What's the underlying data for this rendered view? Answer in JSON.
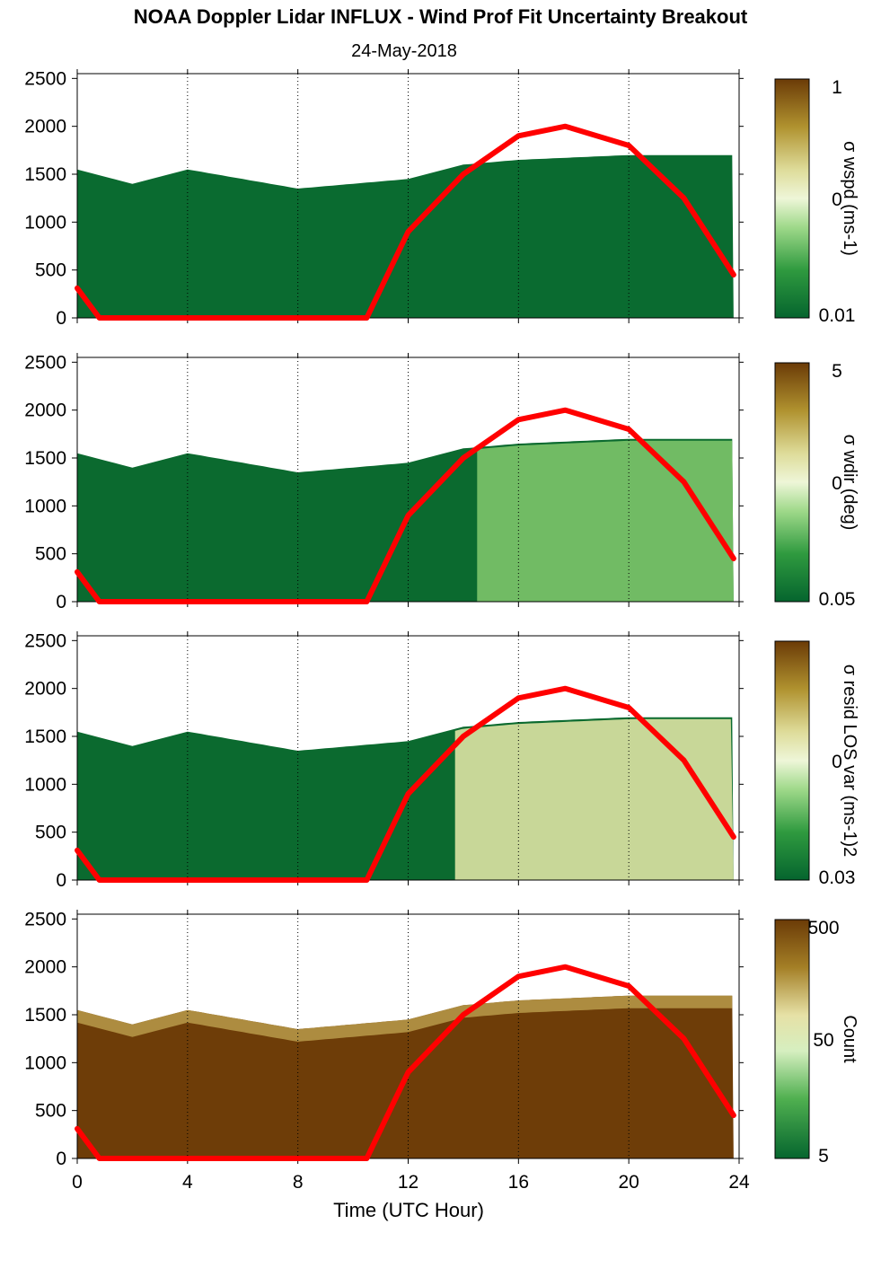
{
  "title": "NOAA Doppler Lidar INFLUX - Wind Prof Fit Uncertainty Breakout",
  "subtitle": "24-May-2018",
  "xlabel": "Time (UTC Hour)",
  "x_ticks": [
    "0",
    "4",
    "8",
    "12",
    "16",
    "20",
    "24"
  ],
  "y_ticks": [
    "0",
    "500",
    "1000",
    "1500",
    "2000",
    "2500"
  ],
  "colors": {
    "red_curve": "#ff0000",
    "dark_green": "#05652e",
    "light_cream": "#f4f6d8",
    "brown": "#6b3b07"
  },
  "chart_data": [
    {
      "type": "heatmap",
      "colorbar_label": "σ wspd (ms-1)",
      "colorbar_ticks": [
        "1",
        "0",
        "0.01"
      ],
      "xlim": [
        0,
        24
      ],
      "ylim": [
        0,
        2550
      ],
      "ceiling": {
        "x": [
          0,
          2,
          4,
          8,
          12,
          14,
          16,
          20,
          24
        ],
        "y": [
          1550,
          1400,
          1550,
          1350,
          1450,
          1600,
          1650,
          1700,
          1700
        ]
      },
      "series": [
        {
          "x": [
            0,
            0.8,
            10.5,
            12,
            14,
            16,
            17.7,
            20,
            22,
            23.8
          ],
          "y": [
            310,
            0,
            0,
            900,
            1500,
            1900,
            2000,
            1800,
            1250,
            450
          ]
        }
      ]
    },
    {
      "type": "heatmap",
      "colorbar_label": "σ wdir (deg)",
      "colorbar_ticks": [
        "5",
        "0",
        "0.05"
      ],
      "xlim": [
        0,
        24
      ],
      "ylim": [
        0,
        2550
      ],
      "ceiling": {
        "x": [
          0,
          2,
          4,
          8,
          12,
          14,
          16,
          20,
          24
        ],
        "y": [
          1550,
          1400,
          1550,
          1350,
          1450,
          1600,
          1650,
          1700,
          1700
        ]
      },
      "series": [
        {
          "x": [
            0,
            0.8,
            10.5,
            12,
            14,
            16,
            17.7,
            20,
            22,
            23.8
          ],
          "y": [
            310,
            0,
            0,
            900,
            1500,
            1900,
            2000,
            1800,
            1250,
            450
          ]
        }
      ]
    },
    {
      "type": "heatmap",
      "colorbar_label": "σ resid LOS var (ms-1)2",
      "colorbar_ticks": [
        "",
        "0",
        "0.03"
      ],
      "xlim": [
        0,
        24
      ],
      "ylim": [
        0,
        2550
      ],
      "ceiling": {
        "x": [
          0,
          2,
          4,
          8,
          12,
          14,
          16,
          20,
          24
        ],
        "y": [
          1550,
          1400,
          1550,
          1350,
          1450,
          1600,
          1650,
          1700,
          1700
        ]
      },
      "series": [
        {
          "x": [
            0,
            0.8,
            10.5,
            12,
            14,
            16,
            17.7,
            20,
            22,
            23.8
          ],
          "y": [
            310,
            0,
            0,
            900,
            1500,
            1900,
            2000,
            1800,
            1250,
            450
          ]
        }
      ]
    },
    {
      "type": "heatmap",
      "colorbar_label": "Count",
      "colorbar_ticks": [
        "500",
        "50",
        "5"
      ],
      "xlim": [
        0,
        24
      ],
      "ylim": [
        0,
        2550
      ],
      "ceiling": {
        "x": [
          0,
          2,
          4,
          8,
          12,
          14,
          16,
          20,
          24
        ],
        "y": [
          1550,
          1400,
          1550,
          1350,
          1450,
          1600,
          1650,
          1700,
          1700
        ]
      },
      "series": [
        {
          "x": [
            0,
            0.8,
            10.5,
            12,
            14,
            16,
            17.7,
            20,
            22,
            23.8
          ],
          "y": [
            310,
            0,
            0,
            900,
            1500,
            1900,
            2000,
            1800,
            1250,
            450
          ]
        }
      ]
    }
  ]
}
